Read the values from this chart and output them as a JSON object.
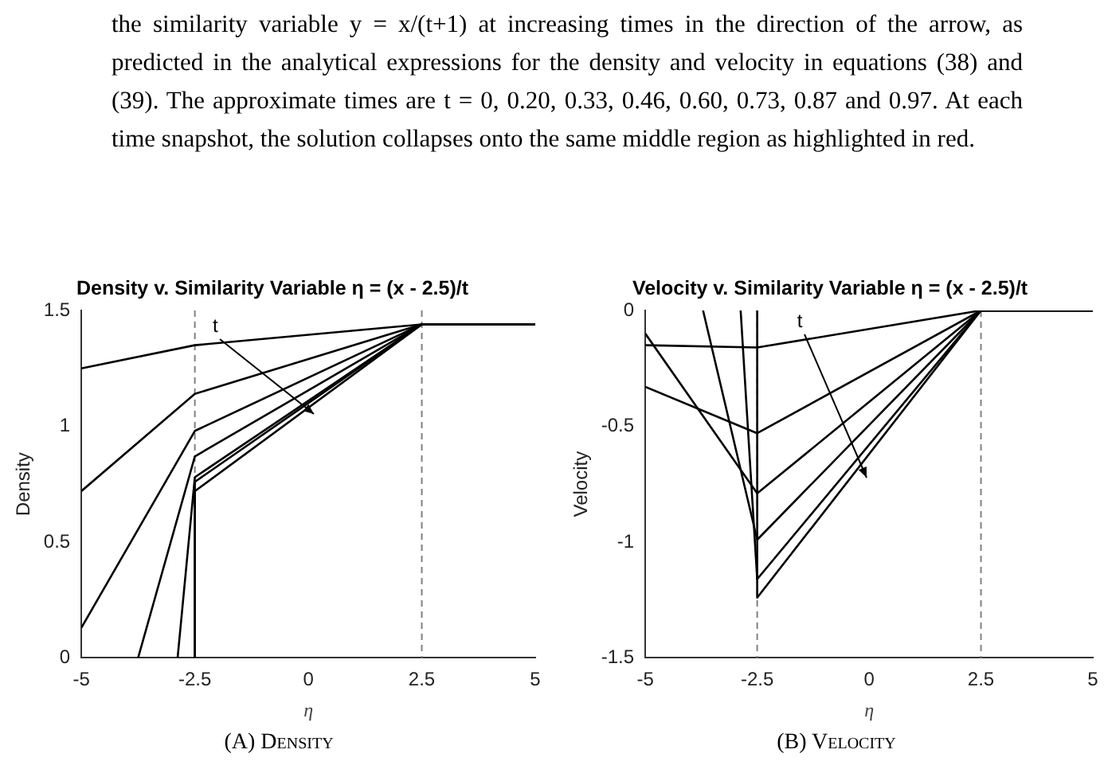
{
  "chart_data": [
    {
      "type": "line",
      "title": "Density v. Similarity Variable η = (x - 2.5)/t",
      "xlabel": "η",
      "ylabel": "Density",
      "xlim": [
        -5,
        5
      ],
      "ylim": [
        0,
        1.5
      ],
      "xticks": [
        -5,
        -2.5,
        0,
        2.5,
        5
      ],
      "yticks": [
        0,
        0.5,
        1,
        1.5
      ],
      "grid": false,
      "legend": false,
      "marker": "none",
      "line_style": "solid",
      "ref_lines": [
        {
          "axis": "x",
          "value": -2.5,
          "color": "#808080",
          "line_style": "dashed"
        },
        {
          "axis": "x",
          "value": 2.5,
          "color": "#808080",
          "line_style": "dashed"
        }
      ],
      "annotations": [
        "the similarity variable y = x/(t+1) at increasing times in the direction of the arrow, as predicted in the analytical expressions for the density and velocity in equations (38) and (39). The approximate times are t = 0, 0.20, 0.33, 0.46, 0.60, 0.73, 0.87 and 0.97. At each time snapshot, the solution collapses onto the same middle region as highlighted in red.",
        "t",
        "(A) Density"
      ],
      "series": [
        {
          "color": "#000000",
          "x": [
            -5,
            -2.5,
            2.5,
            5
          ],
          "values": [
            1.25,
            1.35,
            1.44,
            1.44
          ]
        },
        {
          "color": "#000000",
          "x": [
            -5,
            -2.5,
            2.5,
            5
          ],
          "values": [
            0.72,
            1.14,
            1.44,
            1.44
          ]
        },
        {
          "color": "#000000",
          "x": [
            -5,
            -2.5,
            2.5,
            5
          ],
          "values": [
            0.13,
            0.98,
            1.44,
            1.44
          ]
        },
        {
          "color": "#000000",
          "x": [
            -3.75,
            -2.5,
            2.5,
            5
          ],
          "values": [
            0,
            0.87,
            1.44,
            1.44
          ]
        },
        {
          "color": "#000000",
          "x": [
            -2.88,
            -2.5,
            2.5,
            5
          ],
          "values": [
            0,
            0.78,
            1.44,
            1.44
          ]
        },
        {
          "color": "#000000",
          "x": [
            -2.5,
            -2.5,
            2.5,
            5
          ],
          "values": [
            0,
            0.76,
            1.44,
            1.44
          ]
        },
        {
          "color": "#000000",
          "x": [
            -2.5,
            -2.5,
            2.5,
            5
          ],
          "values": [
            0,
            0.72,
            1.44,
            1.44
          ]
        }
      ]
    },
    {
      "type": "line",
      "title": "Velocity v. Similarity Variable η = (x - 2.5)/t",
      "xlabel": "η",
      "ylabel": "Velocity",
      "xlim": [
        -5,
        5
      ],
      "ylim": [
        -1.5,
        0
      ],
      "xticks": [
        -5,
        -2.5,
        0,
        2.5,
        5
      ],
      "yticks": [
        -1.5,
        -1,
        -0.5,
        0
      ],
      "grid": false,
      "legend": false,
      "marker": "none",
      "line_style": "solid",
      "ref_lines": [
        {
          "axis": "x",
          "value": -2.5,
          "color": "#808080",
          "line_style": "dashed"
        },
        {
          "axis": "x",
          "value": 2.5,
          "color": "#808080",
          "line_style": "dashed"
        }
      ],
      "annotations": [
        "t",
        "(B) Velocity"
      ],
      "series": [
        {
          "color": "#000000",
          "x": [
            -5,
            -2.5,
            2.5,
            5
          ],
          "values": [
            -0.15,
            -0.16,
            0,
            0
          ]
        },
        {
          "color": "#000000",
          "x": [
            -5,
            -2.5,
            2.5,
            5
          ],
          "values": [
            -0.33,
            -0.53,
            0,
            0
          ]
        },
        {
          "color": "#000000",
          "x": [
            -5,
            -2.5,
            2.5,
            5
          ],
          "values": [
            -0.1,
            -0.79,
            0,
            0
          ]
        },
        {
          "color": "#000000",
          "x": [
            -3.71,
            -2.5,
            2.5,
            5
          ],
          "values": [
            0,
            -0.99,
            0,
            0
          ]
        },
        {
          "color": "#000000",
          "x": [
            -2.87,
            -2.5,
            2.5,
            5
          ],
          "values": [
            0,
            -1.16,
            0,
            0
          ]
        },
        {
          "color": "#000000",
          "x": [
            -2.5,
            -2.5,
            2.5,
            5
          ],
          "values": [
            0,
            -1.24,
            0,
            0
          ]
        }
      ]
    }
  ]
}
